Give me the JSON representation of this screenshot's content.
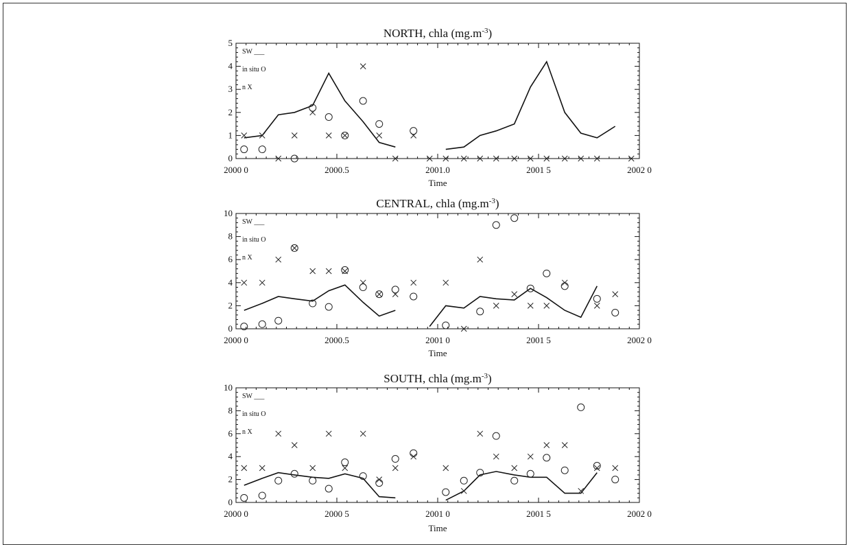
{
  "colors": {
    "ink": "#111111",
    "background": "#ffffff"
  },
  "chart_data": [
    {
      "type": "line",
      "title_main": "NORTH, chla (mg.m",
      "title_sup": "-3",
      "title_end": ")",
      "xlabel": "Time",
      "xlim": [
        2000.0,
        2002.0
      ],
      "ylim": [
        0,
        5
      ],
      "xticks": [
        2000.0,
        2000.5,
        2001.0,
        2001.5,
        2002.0
      ],
      "xtick_labels": [
        "2000 0",
        "2000.5",
        "2001.0",
        "2001 5",
        "2002 0"
      ],
      "yticks": [
        0,
        1,
        2,
        3,
        4,
        5
      ],
      "ytick_labels": [
        "0",
        "1",
        "2",
        "3",
        "4",
        "5"
      ],
      "legend": [
        "SW ___",
        "in situ  O",
        "n  X"
      ],
      "series": [
        {
          "name": "SW",
          "style": "line",
          "segments": [
            {
              "x": [
                2000.04,
                2000.13,
                2000.21,
                2000.29,
                2000.38,
                2000.46,
                2000.54,
                2000.63,
                2000.71,
                2000.79
              ],
              "y": [
                0.9,
                1.0,
                1.9,
                2.0,
                2.3,
                3.7,
                2.5,
                1.6,
                0.7,
                0.5
              ]
            },
            {
              "x": [
                2001.04,
                2001.13,
                2001.21,
                2001.29,
                2001.38,
                2001.46,
                2001.54,
                2001.63,
                2001.71,
                2001.79,
                2001.88
              ],
              "y": [
                0.4,
                0.5,
                1.0,
                1.2,
                1.5,
                3.1,
                4.2,
                2.0,
                1.1,
                0.9,
                1.4
              ]
            }
          ]
        },
        {
          "name": "in situ",
          "style": "circle",
          "x": [
            2000.04,
            2000.13,
            2000.29,
            2000.38,
            2000.46,
            2000.54,
            2000.63,
            2000.71,
            2000.88
          ],
          "y": [
            0.4,
            0.4,
            0.0,
            2.2,
            1.8,
            1.0,
            2.5,
            1.5,
            1.2
          ]
        },
        {
          "name": "n",
          "style": "x",
          "x": [
            2000.04,
            2000.13,
            2000.21,
            2000.29,
            2000.38,
            2000.46,
            2000.54,
            2000.63,
            2000.71,
            2000.79,
            2000.88,
            2000.96,
            2001.04,
            2001.13,
            2001.21,
            2001.29,
            2001.38,
            2001.46,
            2001.54,
            2001.63,
            2001.71,
            2001.79,
            2001.96
          ],
          "y": [
            1,
            1,
            0,
            1,
            2,
            1,
            1,
            4,
            1,
            0,
            1,
            0,
            0,
            0,
            0,
            0,
            0,
            0,
            0,
            0,
            0,
            0,
            0
          ]
        }
      ]
    },
    {
      "type": "line",
      "title_main": "CENTRAL, chla (mg.m",
      "title_sup": "-3",
      "title_end": ")",
      "xlabel": "Time",
      "xlim": [
        2000.0,
        2002.0
      ],
      "ylim": [
        0,
        10
      ],
      "xticks": [
        2000.0,
        2000.5,
        2001.0,
        2001.5,
        2002.0
      ],
      "xtick_labels": [
        "2000 0",
        "2000.5",
        "2001 0",
        "2001 5",
        "2002 0"
      ],
      "yticks": [
        0,
        2,
        4,
        6,
        8,
        10
      ],
      "ytick_labels": [
        "0",
        "2",
        "4",
        "6",
        "8",
        "10"
      ],
      "legend": [
        "SW ___",
        "in situ  O",
        "n  X"
      ],
      "series": [
        {
          "name": "SW",
          "style": "line",
          "segments": [
            {
              "x": [
                2000.04,
                2000.13,
                2000.21,
                2000.29,
                2000.38,
                2000.46,
                2000.54,
                2000.63,
                2000.71,
                2000.79
              ],
              "y": [
                1.6,
                2.2,
                2.8,
                2.6,
                2.4,
                3.3,
                3.8,
                2.3,
                1.1,
                1.6
              ]
            },
            {
              "x": [
                2000.96,
                2001.04,
                2001.13,
                2001.21,
                2001.29,
                2001.38,
                2001.46,
                2001.54,
                2001.63,
                2001.71,
                2001.79
              ],
              "y": [
                0.2,
                2.0,
                1.8,
                2.8,
                2.6,
                2.5,
                3.5,
                2.7,
                1.6,
                1.0,
                3.7
              ]
            }
          ]
        },
        {
          "name": "in situ",
          "style": "circle",
          "x": [
            2000.04,
            2000.13,
            2000.21,
            2000.29,
            2000.38,
            2000.46,
            2000.54,
            2000.63,
            2000.71,
            2000.79,
            2000.88,
            2001.04,
            2001.21,
            2001.29,
            2001.38,
            2001.46,
            2001.54,
            2001.63,
            2001.79,
            2001.88
          ],
          "y": [
            0.2,
            0.4,
            0.7,
            7.0,
            2.2,
            1.9,
            5.1,
            3.6,
            3.0,
            3.4,
            2.8,
            0.3,
            1.5,
            9.0,
            9.6,
            3.5,
            4.8,
            3.7,
            2.6,
            1.4
          ]
        },
        {
          "name": "n",
          "style": "x",
          "x": [
            2000.04,
            2000.13,
            2000.21,
            2000.29,
            2000.38,
            2000.46,
            2000.54,
            2000.63,
            2000.71,
            2000.79,
            2000.88,
            2001.04,
            2001.13,
            2001.21,
            2001.29,
            2001.38,
            2001.46,
            2001.54,
            2001.63,
            2001.79,
            2001.88
          ],
          "y": [
            4,
            4,
            6,
            7,
            5,
            5,
            5,
            4,
            3,
            3,
            4,
            4,
            0,
            6,
            2,
            3,
            2,
            2,
            4,
            2,
            3
          ]
        }
      ]
    },
    {
      "type": "line",
      "title_main": "SOUTH, chla (mg.m",
      "title_sup": "-3",
      "title_end": ")",
      "xlabel": "Time",
      "xlim": [
        2000.0,
        2002.0
      ],
      "ylim": [
        0,
        10
      ],
      "xticks": [
        2000.0,
        2000.5,
        2001.0,
        2001.5,
        2002.0
      ],
      "xtick_labels": [
        "2000 0",
        "2000 5",
        "2001 0",
        "2001 5",
        "2002 0"
      ],
      "yticks": [
        0,
        2,
        4,
        6,
        8,
        10
      ],
      "ytick_labels": [
        "0",
        "2",
        "4",
        "6",
        "8",
        "10"
      ],
      "legend": [
        "SW ___",
        "in situ  O",
        "n  X"
      ],
      "series": [
        {
          "name": "SW",
          "style": "line",
          "segments": [
            {
              "x": [
                2000.04,
                2000.13,
                2000.21,
                2000.29,
                2000.38,
                2000.46,
                2000.54,
                2000.63,
                2000.71,
                2000.79
              ],
              "y": [
                1.5,
                2.1,
                2.6,
                2.4,
                2.2,
                2.1,
                2.5,
                2.1,
                0.5,
                0.4
              ]
            },
            {
              "x": [
                2001.04,
                2001.13,
                2001.21,
                2001.29,
                2001.38,
                2001.46,
                2001.54,
                2001.63,
                2001.71,
                2001.79
              ],
              "y": [
                0.2,
                1.0,
                2.4,
                2.7,
                2.4,
                2.2,
                2.2,
                0.8,
                0.8,
                2.6
              ]
            }
          ]
        },
        {
          "name": "in situ",
          "style": "circle",
          "x": [
            2000.04,
            2000.13,
            2000.21,
            2000.29,
            2000.38,
            2000.46,
            2000.54,
            2000.63,
            2000.71,
            2000.79,
            2000.88,
            2001.04,
            2001.13,
            2001.21,
            2001.29,
            2001.38,
            2001.46,
            2001.54,
            2001.63,
            2001.71,
            2001.79,
            2001.88
          ],
          "y": [
            0.4,
            0.6,
            1.9,
            2.5,
            1.9,
            1.2,
            3.5,
            2.3,
            1.7,
            3.8,
            4.3,
            0.9,
            1.9,
            2.6,
            5.8,
            1.9,
            2.5,
            3.9,
            2.8,
            8.3,
            3.2,
            2.0
          ]
        },
        {
          "name": "n",
          "style": "x",
          "x": [
            2000.04,
            2000.13,
            2000.21,
            2000.29,
            2000.38,
            2000.46,
            2000.54,
            2000.63,
            2000.71,
            2000.79,
            2000.88,
            2001.04,
            2001.13,
            2001.21,
            2001.29,
            2001.38,
            2001.46,
            2001.54,
            2001.63,
            2001.71,
            2001.79,
            2001.88
          ],
          "y": [
            3,
            3,
            6,
            5,
            3,
            6,
            3,
            6,
            2,
            3,
            4,
            3,
            1,
            6,
            4,
            3,
            4,
            5,
            5,
            1,
            3,
            3
          ]
        }
      ]
    }
  ]
}
